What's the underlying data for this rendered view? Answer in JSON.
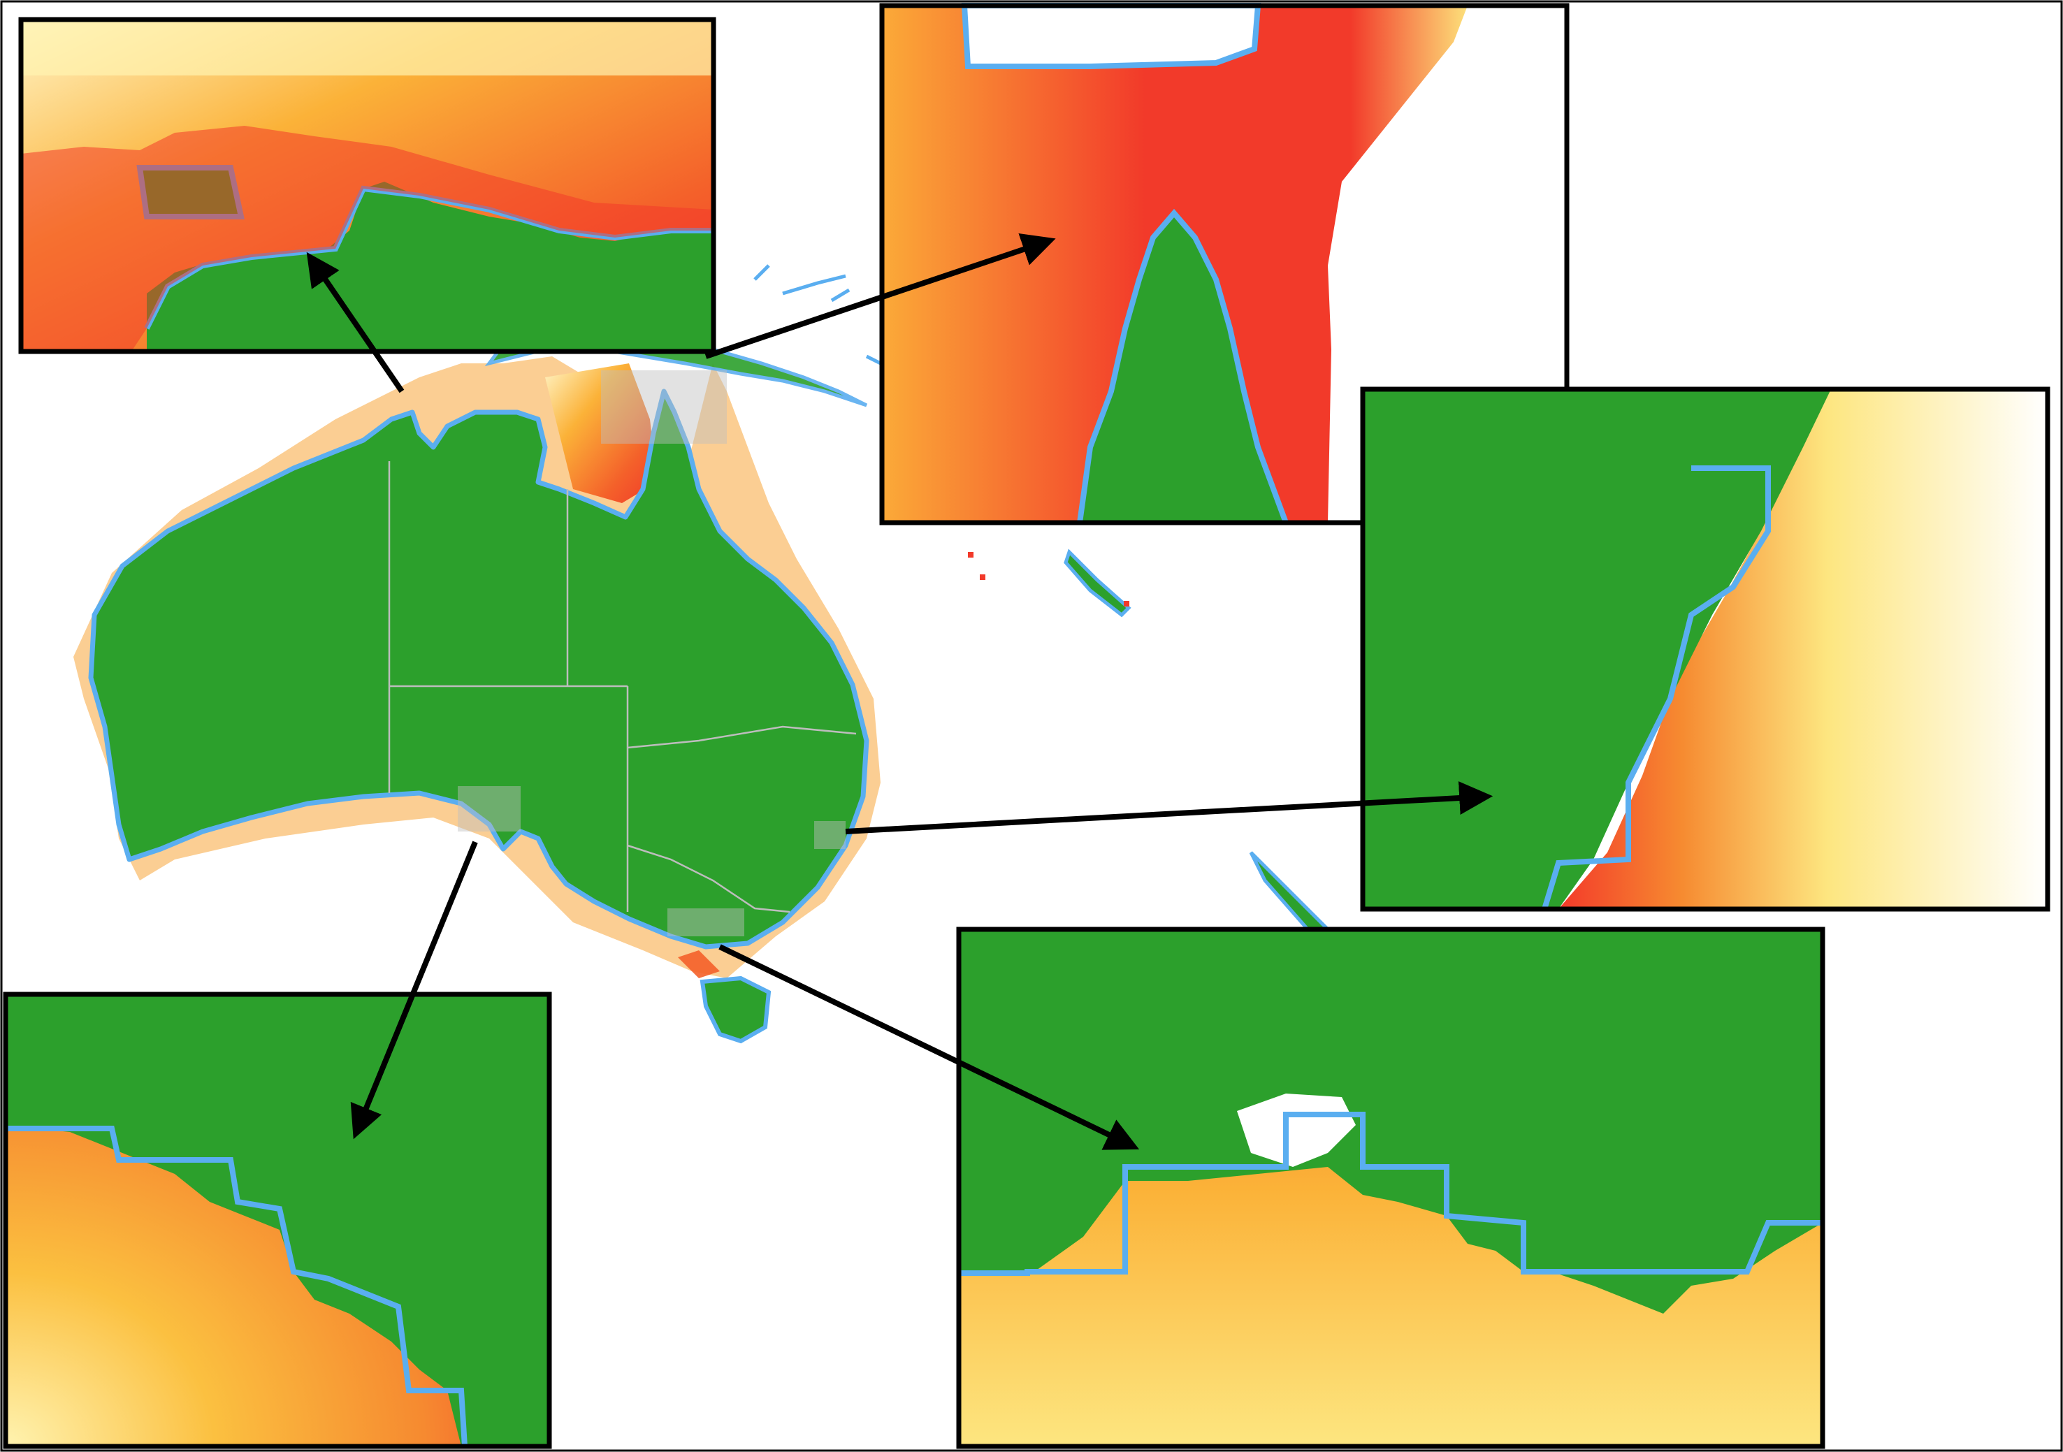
{
  "figure": {
    "land_color": "#2ca02c",
    "model_coastline_color": "#5aaef0",
    "hotspot_color": "#f0302a",
    "heat_ramp": [
      "#f52f2a",
      "#f46a2a",
      "#f59a30",
      "#fbc040",
      "#fde680",
      "#fffbd8"
    ],
    "state_border_color": "#bdbdbd",
    "frame_color": "#000000",
    "background_color": "#ffffff"
  },
  "main_map": {
    "landmasses": [
      "australia",
      "tasmania",
      "new-guinea",
      "new-zealand",
      "new-caledonia",
      "pacific-islands"
    ]
  },
  "insets": [
    {
      "id": "inset-gulf-of-carpentaria",
      "region": "north-coast",
      "sample": "top-left"
    },
    {
      "id": "inset-cape-york-torres-strait",
      "region": "cape-york",
      "sample": "top-right"
    },
    {
      "id": "inset-nsw-coast",
      "region": "east-coast",
      "sample": "right"
    },
    {
      "id": "inset-great-australian-bight",
      "region": "south-coast",
      "sample": "bottom-left"
    },
    {
      "id": "inset-port-phillip-bass-strait",
      "region": "south-east-coast",
      "sample": "bottom-right"
    }
  ]
}
